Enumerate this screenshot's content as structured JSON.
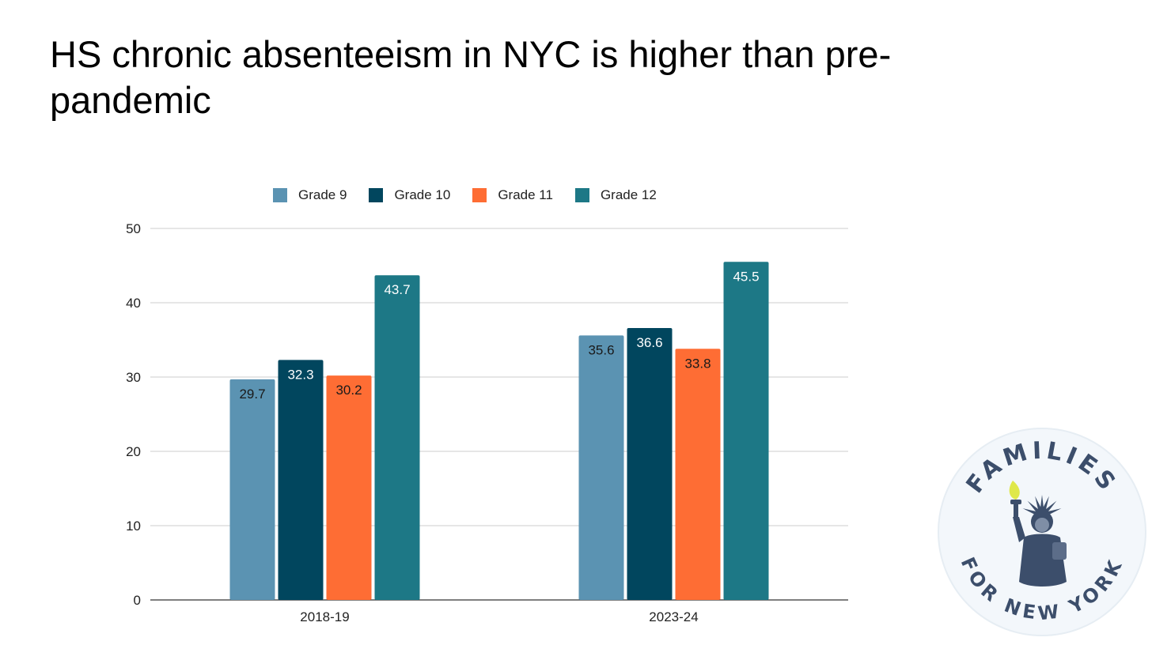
{
  "slide": {
    "title": "HS chronic absenteeism in NYC is higher than pre-pandemic"
  },
  "chart_data": {
    "type": "bar",
    "categories": [
      "2018-19",
      "2023-24"
    ],
    "series": [
      {
        "name": "Grade 9",
        "color": "#5b93b2",
        "values": [
          29.7,
          35.6
        ],
        "label_color": "#1a1a1a"
      },
      {
        "name": "Grade 10",
        "color": "#01465e",
        "values": [
          32.3,
          36.6
        ],
        "label_color": "#ffffff"
      },
      {
        "name": "Grade 11",
        "color": "#fe6d34",
        "values": [
          30.2,
          33.8
        ],
        "label_color": "#1a1a1a"
      },
      {
        "name": "Grade 12",
        "color": "#1d7886",
        "values": [
          43.7,
          45.5
        ],
        "label_color": "#ffffff"
      }
    ],
    "ylim": [
      0,
      50
    ],
    "yticks": [
      "0",
      "10",
      "20",
      "30",
      "40",
      "50"
    ],
    "grid": true,
    "legend_position": "top",
    "data_labels": true
  },
  "logo": {
    "top_text": "FAMILIES",
    "bottom_text": "FOR NEW YORK",
    "icon": "statue-of-liberty-icon",
    "ring_color": "#f3f7fb",
    "text_color": "#3c4e6b",
    "torch_color": "#dfe84a"
  }
}
